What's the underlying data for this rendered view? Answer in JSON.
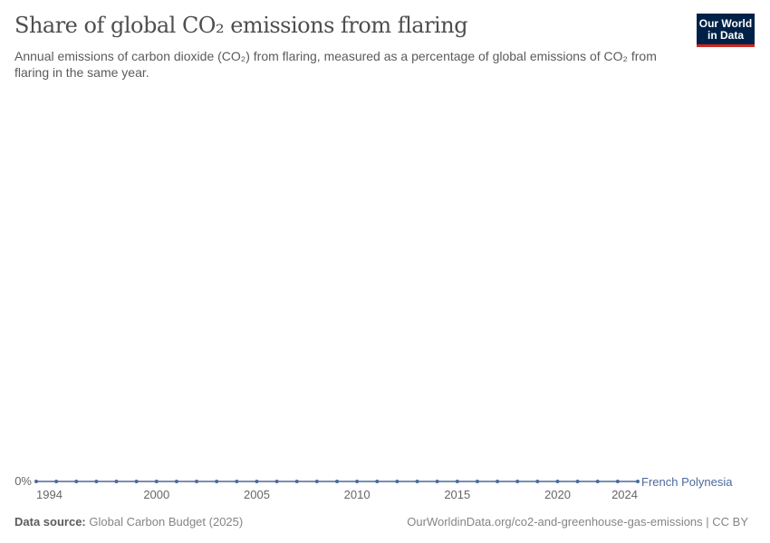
{
  "chart_data": {
    "type": "line",
    "title": "Share of global CO₂ emissions from flaring",
    "subtitle": "Annual emissions of carbon dioxide (CO₂) from flaring, measured as a percentage of global emissions of CO₂ from flaring in the same year.",
    "x": [
      1994,
      1995,
      1996,
      1997,
      1998,
      1999,
      2000,
      2001,
      2002,
      2003,
      2004,
      2005,
      2006,
      2007,
      2008,
      2009,
      2010,
      2011,
      2012,
      2013,
      2014,
      2015,
      2016,
      2017,
      2018,
      2019,
      2020,
      2021,
      2022,
      2023,
      2024
    ],
    "series": [
      {
        "name": "French Polynesia",
        "color": "#4c6a9c",
        "values": [
          0,
          0,
          0,
          0,
          0,
          0,
          0,
          0,
          0,
          0,
          0,
          0,
          0,
          0,
          0,
          0,
          0,
          0,
          0,
          0,
          0,
          0,
          0,
          0,
          0,
          0,
          0,
          0,
          0,
          0,
          0
        ]
      }
    ],
    "xticks": [
      "1994",
      "2000",
      "2005",
      "2010",
      "2015",
      "2020",
      "2024"
    ],
    "yticks": [
      "0%"
    ],
    "xlim": [
      1994,
      2024
    ],
    "grid": false,
    "legend": "right-end-label"
  },
  "logo": {
    "line1": "Our World",
    "line2": "in Data"
  },
  "footer": {
    "source_label": "Data source:",
    "source": "Global Carbon Budget (2025)",
    "url": "OurWorldinData.org/co2-and-greenhouse-gas-emissions | CC BY"
  }
}
